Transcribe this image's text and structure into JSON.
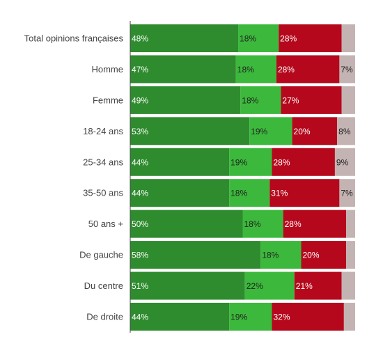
{
  "chart_data": {
    "type": "bar",
    "orientation": "horizontal",
    "stacked": true,
    "normalized": true,
    "categories": [
      "Total opinions françaises",
      "Homme",
      "Femme",
      "18-24 ans",
      "25-34 ans",
      "35-50 ans",
      "50 ans +",
      "De gauche",
      "Du centre",
      "De droite"
    ],
    "series": [
      {
        "values": [
          48,
          47,
          49,
          53,
          44,
          44,
          50,
          58,
          51,
          44
        ],
        "color": "#2e8b2e"
      },
      {
        "values": [
          18,
          18,
          18,
          19,
          19,
          18,
          18,
          18,
          22,
          19
        ],
        "color": "#3cb93c"
      },
      {
        "values": [
          28,
          28,
          27,
          20,
          28,
          31,
          28,
          20,
          21,
          32
        ],
        "color": "#b5081c"
      },
      {
        "values": [
          6,
          7,
          6,
          8,
          9,
          7,
          4,
          4,
          6,
          5
        ],
        "color": "#c4b3b3"
      }
    ],
    "value_labels": [
      [
        "48%",
        "47%",
        "49%",
        "53%",
        "44%",
        "44%",
        "50%",
        "58%",
        "51%",
        "44%"
      ],
      [
        "18%",
        "18%",
        "18%",
        "19%",
        "19%",
        "18%",
        "18%",
        "18%",
        "22%",
        "19%"
      ],
      [
        "28%",
        "28%",
        "27%",
        "20%",
        "28%",
        "31%",
        "28%",
        "20%",
        "21%",
        "32%"
      ],
      [
        "",
        "7%",
        "",
        "8%",
        "9%",
        "7%",
        "",
        "",
        "",
        ""
      ]
    ],
    "xlim": [
      0,
      100
    ],
    "grid": false,
    "legend": "none"
  }
}
